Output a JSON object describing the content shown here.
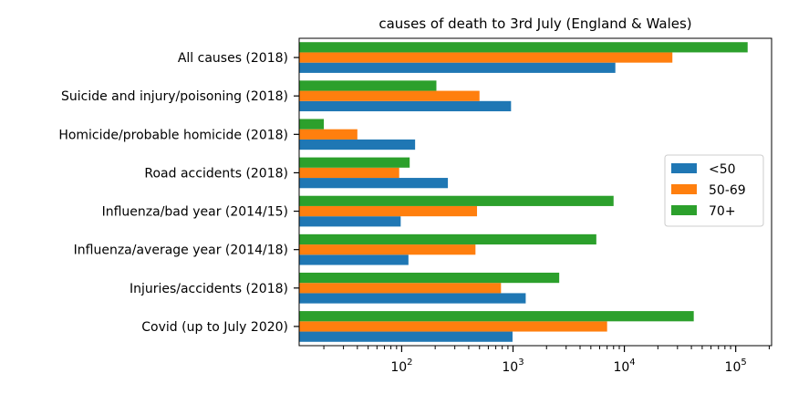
{
  "chart_data": {
    "type": "bar",
    "orientation": "horizontal",
    "title": "causes of death to 3rd July (England & Wales)",
    "xlabel": "",
    "ylabel": "",
    "xscale": "log",
    "xlim": [
      12,
      210000
    ],
    "grid": false,
    "legend_position": "right",
    "categories": [
      "All causes (2018)",
      "Suicide and injury/poisoning (2018)",
      "Homicide/probable homicide (2018)",
      "Road accidents (2018)",
      "Influenza/bad year (2014/15)",
      "Influenza/average year (2014/18)",
      "Injuries/accidents (2018)",
      "Covid (up to July 2020)"
    ],
    "x_ticks": [
      {
        "value": 100,
        "base": "10",
        "exp": "2"
      },
      {
        "value": 1000,
        "base": "10",
        "exp": "3"
      },
      {
        "value": 10000,
        "base": "10",
        "exp": "4"
      },
      {
        "value": 100000,
        "base": "10",
        "exp": "5"
      }
    ],
    "series": [
      {
        "name": "<50",
        "color": "#1f77b4",
        "values": [
          8300,
          960,
          132,
          260,
          98,
          115,
          1300,
          990
        ]
      },
      {
        "name": "50-69",
        "color": "#ff7f0e",
        "values": [
          27000,
          500,
          40,
          95,
          475,
          460,
          780,
          7000
        ]
      },
      {
        "name": "70+",
        "color": "#2ca02c",
        "values": [
          128000,
          205,
          20,
          118,
          8000,
          5600,
          2600,
          42000
        ]
      }
    ]
  }
}
